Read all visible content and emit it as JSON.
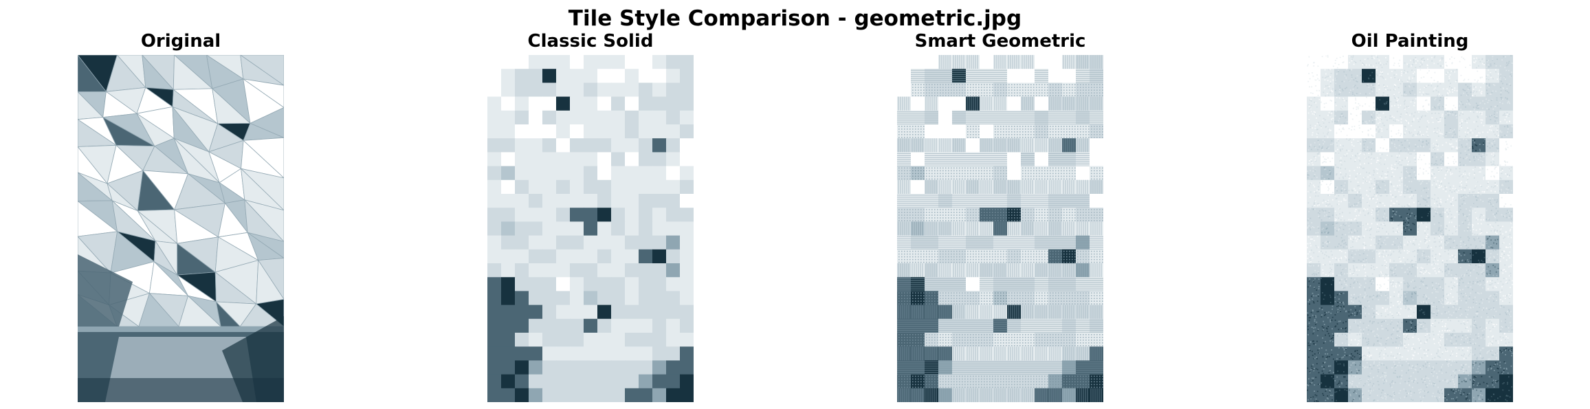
{
  "figure": {
    "title": "Tile Style Comparison - geometric.jpg"
  },
  "panels": [
    {
      "id": "original",
      "title": "Original"
    },
    {
      "id": "classic",
      "title": "Classic Solid"
    },
    {
      "id": "geometric",
      "title": "Smart Geometric"
    },
    {
      "id": "oil",
      "title": "Oil Painting"
    }
  ],
  "palette": {
    "white": "#ffffff",
    "lightest": "#e4ebee",
    "light": "#cfdae0",
    "mid": "#b5c6cf",
    "blue_gray": "#8fa6b2",
    "dark": "#4b6674",
    "darkest": "#17323f"
  },
  "tiles": {
    "columns": 15,
    "rows": 25,
    "levels": [
      "000111011100122",
      "012261110010012",
      "012221121112122",
      "101006110202222",
      "112021111121121",
      "110001011121112",
      "221120222112520",
      "101111110202210",
      "231111120111101",
      "102112122111112",
      "111211112112220",
      "221112556212122",
      "232211151212111",
      "122112211122241",
      "111221112115621",
      "212111221122241",
      "562220122212211",
      "565222132212221",
      "555521116222222",
      "555222252111212",
      "552122211122211",
      "555511111111225",
      "556422222222455",
      "565222222224556",
      "556422222255466"
    ]
  }
}
